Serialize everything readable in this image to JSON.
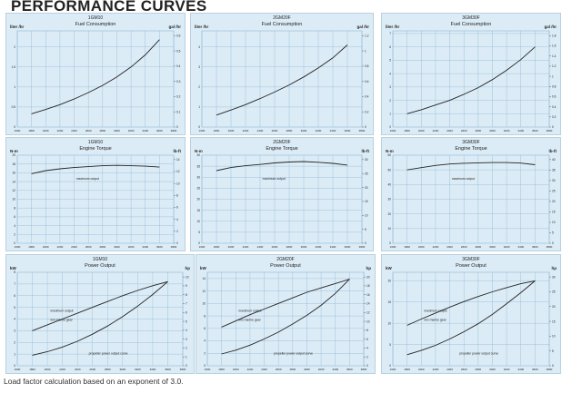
{
  "page_title": "PERFORMANCE CURVES",
  "footnote": "Load factor calculation based on an exponent of 3.0.",
  "colors": {
    "panel_bg": "#dcecf6",
    "grid": "#8fb8d6",
    "curve": "#222222"
  },
  "x_ticks": [
    "1600",
    "1800",
    "2000",
    "2200",
    "2400",
    "2600",
    "2800",
    "3000",
    "3200",
    "3400",
    "3600",
    "3800"
  ],
  "chart_data": [
    {
      "type": "line",
      "model": "1GM10",
      "title": "Fuel Consumption",
      "ylabel": "liter /hr",
      "y2label": "gal /hr",
      "xlim": [
        1600,
        3800
      ],
      "ylim": [
        0,
        2.4
      ],
      "yticks": [
        "0",
        "0.5",
        "1",
        "1.5",
        "2"
      ],
      "y2ticks": [
        "0",
        "0.1",
        "0.2",
        "0.3",
        "0.4",
        "0.5",
        "0.6"
      ],
      "series": [
        {
          "x": [
            1800,
            2000,
            2200,
            2400,
            2600,
            2800,
            3000,
            3200,
            3400,
            3600
          ],
          "values": [
            0.33,
            0.44,
            0.56,
            0.7,
            0.86,
            1.04,
            1.25,
            1.5,
            1.8,
            2.18
          ]
        }
      ]
    },
    {
      "type": "line",
      "model": "2GM20F",
      "title": "Fuel Consumption",
      "ylabel": "liter /hr",
      "y2label": "gal /hr",
      "xlim": [
        1600,
        3800
      ],
      "ylim": [
        0,
        4.8
      ],
      "yticks": [
        "0",
        "1",
        "2",
        "3",
        "4"
      ],
      "y2ticks": [
        "0",
        "0.2",
        "0.4",
        "0.6",
        "0.8",
        "1",
        "1.2"
      ],
      "series": [
        {
          "x": [
            1800,
            2000,
            2200,
            2400,
            2600,
            2800,
            3000,
            3200,
            3400,
            3600
          ],
          "values": [
            0.6,
            0.85,
            1.12,
            1.42,
            1.75,
            2.1,
            2.5,
            2.95,
            3.45,
            4.1
          ]
        }
      ]
    },
    {
      "type": "line",
      "model": "3GM30F",
      "title": "Fuel Consumption",
      "ylabel": "liter /hr",
      "y2label": "gal /hr",
      "xlim": [
        1600,
        3800
      ],
      "ylim": [
        0,
        7.2
      ],
      "yticks": [
        "0",
        "1",
        "2",
        "3",
        "4",
        "5",
        "6",
        "7"
      ],
      "y2ticks": [
        "0",
        "0.2",
        "0.4",
        "0.6",
        "0.8",
        "1",
        "1.2",
        "1.4",
        "1.6",
        "1.8"
      ],
      "series": [
        {
          "x": [
            1800,
            2000,
            2200,
            2400,
            2600,
            2800,
            3000,
            3200,
            3400,
            3600
          ],
          "values": [
            1.0,
            1.3,
            1.65,
            2.0,
            2.45,
            2.95,
            3.55,
            4.25,
            5.05,
            6.0
          ]
        }
      ]
    },
    {
      "type": "line",
      "model": "1GM10",
      "title": "Engine Torque",
      "ylabel": "N-m",
      "y2label": "lb-ft",
      "xlim": [
        1600,
        3800
      ],
      "ylim": [
        0,
        20
      ],
      "yticks": [
        "0",
        "2",
        "4",
        "6",
        "8",
        "10",
        "12",
        "14",
        "16",
        "18",
        "20"
      ],
      "y2ticks": [
        "0",
        "2",
        "4",
        "6",
        "8",
        "10",
        "12",
        "14"
      ],
      "annotation": "maximum output",
      "series": [
        {
          "x": [
            1800,
            2000,
            2200,
            2400,
            2600,
            2800,
            3000,
            3200,
            3400,
            3600
          ],
          "values": [
            15.8,
            16.5,
            16.9,
            17.2,
            17.4,
            17.6,
            17.7,
            17.6,
            17.5,
            17.3
          ]
        }
      ]
    },
    {
      "type": "line",
      "model": "2GM20F",
      "title": "Engine Torque",
      "ylabel": "N-m",
      "y2label": "lb-ft",
      "xlim": [
        1600,
        3800
      ],
      "ylim": [
        0,
        40
      ],
      "yticks": [
        "0",
        "5",
        "10",
        "15",
        "20",
        "25",
        "30",
        "35",
        "40"
      ],
      "y2ticks": [
        "0",
        "5",
        "10",
        "15",
        "20",
        "25",
        "30"
      ],
      "annotation": "maximum output",
      "series": [
        {
          "x": [
            1800,
            2000,
            2200,
            2400,
            2600,
            2800,
            3000,
            3200,
            3400,
            3600
          ],
          "values": [
            33.0,
            34.4,
            35.2,
            35.8,
            36.5,
            36.9,
            37.1,
            36.8,
            36.3,
            35.5
          ]
        }
      ]
    },
    {
      "type": "line",
      "model": "3GM30F",
      "title": "Engine Torque",
      "ylabel": "N-m",
      "y2label": "lb-ft",
      "xlim": [
        1600,
        3800
      ],
      "ylim": [
        0,
        60
      ],
      "yticks": [
        "0",
        "10",
        "20",
        "30",
        "40",
        "50",
        "60"
      ],
      "y2ticks": [
        "0",
        "5",
        "10",
        "15",
        "20",
        "25",
        "30",
        "35",
        "40"
      ],
      "annotation": "maximum output",
      "series": [
        {
          "x": [
            1800,
            2000,
            2200,
            2400,
            2600,
            2800,
            3000,
            3200,
            3400,
            3600
          ],
          "values": [
            50.0,
            51.5,
            53.0,
            54.0,
            54.5,
            54.8,
            55.0,
            55.0,
            54.6,
            53.5
          ]
        }
      ]
    },
    {
      "type": "line",
      "model": "1GM10",
      "title": "Power Output",
      "ylabel": "kW",
      "y2label": "hp",
      "xlim": [
        1600,
        3800
      ],
      "ylim": [
        0,
        8
      ],
      "yticks": [
        "0",
        "1",
        "2",
        "3",
        "4",
        "5",
        "6",
        "7",
        "8"
      ],
      "y2ticks": [
        "0",
        "1",
        "2",
        "3",
        "4",
        "5",
        "6",
        "7",
        "8",
        "9",
        "10"
      ],
      "annotations": [
        "maximum output",
        "w/o marine gear",
        "propeller power output curve"
      ],
      "series": [
        {
          "x": [
            1800,
            2000,
            2200,
            2400,
            2600,
            2800,
            3000,
            3200,
            3400,
            3600
          ],
          "values": [
            3.0,
            3.5,
            4.0,
            4.5,
            5.0,
            5.5,
            6.0,
            6.45,
            6.85,
            7.2
          ]
        },
        {
          "x": [
            1800,
            2000,
            2200,
            2400,
            2600,
            2800,
            3000,
            3200,
            3400,
            3600
          ],
          "values": [
            0.9,
            1.2,
            1.6,
            2.1,
            2.7,
            3.4,
            4.2,
            5.1,
            6.1,
            7.2
          ]
        }
      ]
    },
    {
      "type": "line",
      "model": "2GM20F",
      "title": "Power Output",
      "ylabel": "kW",
      "y2label": "hp",
      "xlim": [
        1600,
        3800
      ],
      "ylim": [
        0,
        15
      ],
      "yticks": [
        "0",
        "2",
        "4",
        "6",
        "8",
        "10",
        "12",
        "14"
      ],
      "y2ticks": [
        "0",
        "2",
        "4",
        "6",
        "8",
        "10",
        "12",
        "14",
        "16",
        "18",
        "20"
      ],
      "annotations": [
        "maximum output",
        "w/o marine gear",
        "propeller power output curve"
      ],
      "series": [
        {
          "x": [
            1800,
            2000,
            2200,
            2400,
            2600,
            2800,
            3000,
            3200,
            3400,
            3600
          ],
          "values": [
            6.2,
            7.2,
            8.2,
            9.1,
            10.0,
            10.9,
            11.8,
            12.5,
            13.2,
            13.9
          ]
        },
        {
          "x": [
            1800,
            2000,
            2200,
            2400,
            2600,
            2800,
            3000,
            3200,
            3400,
            3600
          ],
          "values": [
            1.9,
            2.5,
            3.3,
            4.3,
            5.4,
            6.7,
            8.1,
            9.7,
            11.6,
            13.9
          ]
        }
      ]
    },
    {
      "type": "line",
      "model": "3GM30F",
      "title": "Power Output",
      "ylabel": "kW",
      "y2label": "hp",
      "xlim": [
        1600,
        3800
      ],
      "ylim": [
        0,
        22
      ],
      "yticks": [
        "0",
        "5",
        "10",
        "15",
        "20"
      ],
      "y2ticks": [
        "0",
        "5",
        "10",
        "15",
        "20",
        "25",
        "30"
      ],
      "annotations": [
        "maximum output",
        "w/o marine gear",
        "propeller power output curve"
      ],
      "series": [
        {
          "x": [
            1800,
            2000,
            2200,
            2400,
            2600,
            2800,
            3000,
            3200,
            3400,
            3600
          ],
          "values": [
            9.5,
            11.0,
            12.4,
            13.8,
            15.1,
            16.3,
            17.4,
            18.4,
            19.3,
            20.0
          ]
        },
        {
          "x": [
            1800,
            2000,
            2200,
            2400,
            2600,
            2800,
            3000,
            3200,
            3400,
            3600
          ],
          "values": [
            2.6,
            3.6,
            4.8,
            6.3,
            8.0,
            9.9,
            12.1,
            14.6,
            17.2,
            20.0
          ]
        }
      ]
    }
  ]
}
